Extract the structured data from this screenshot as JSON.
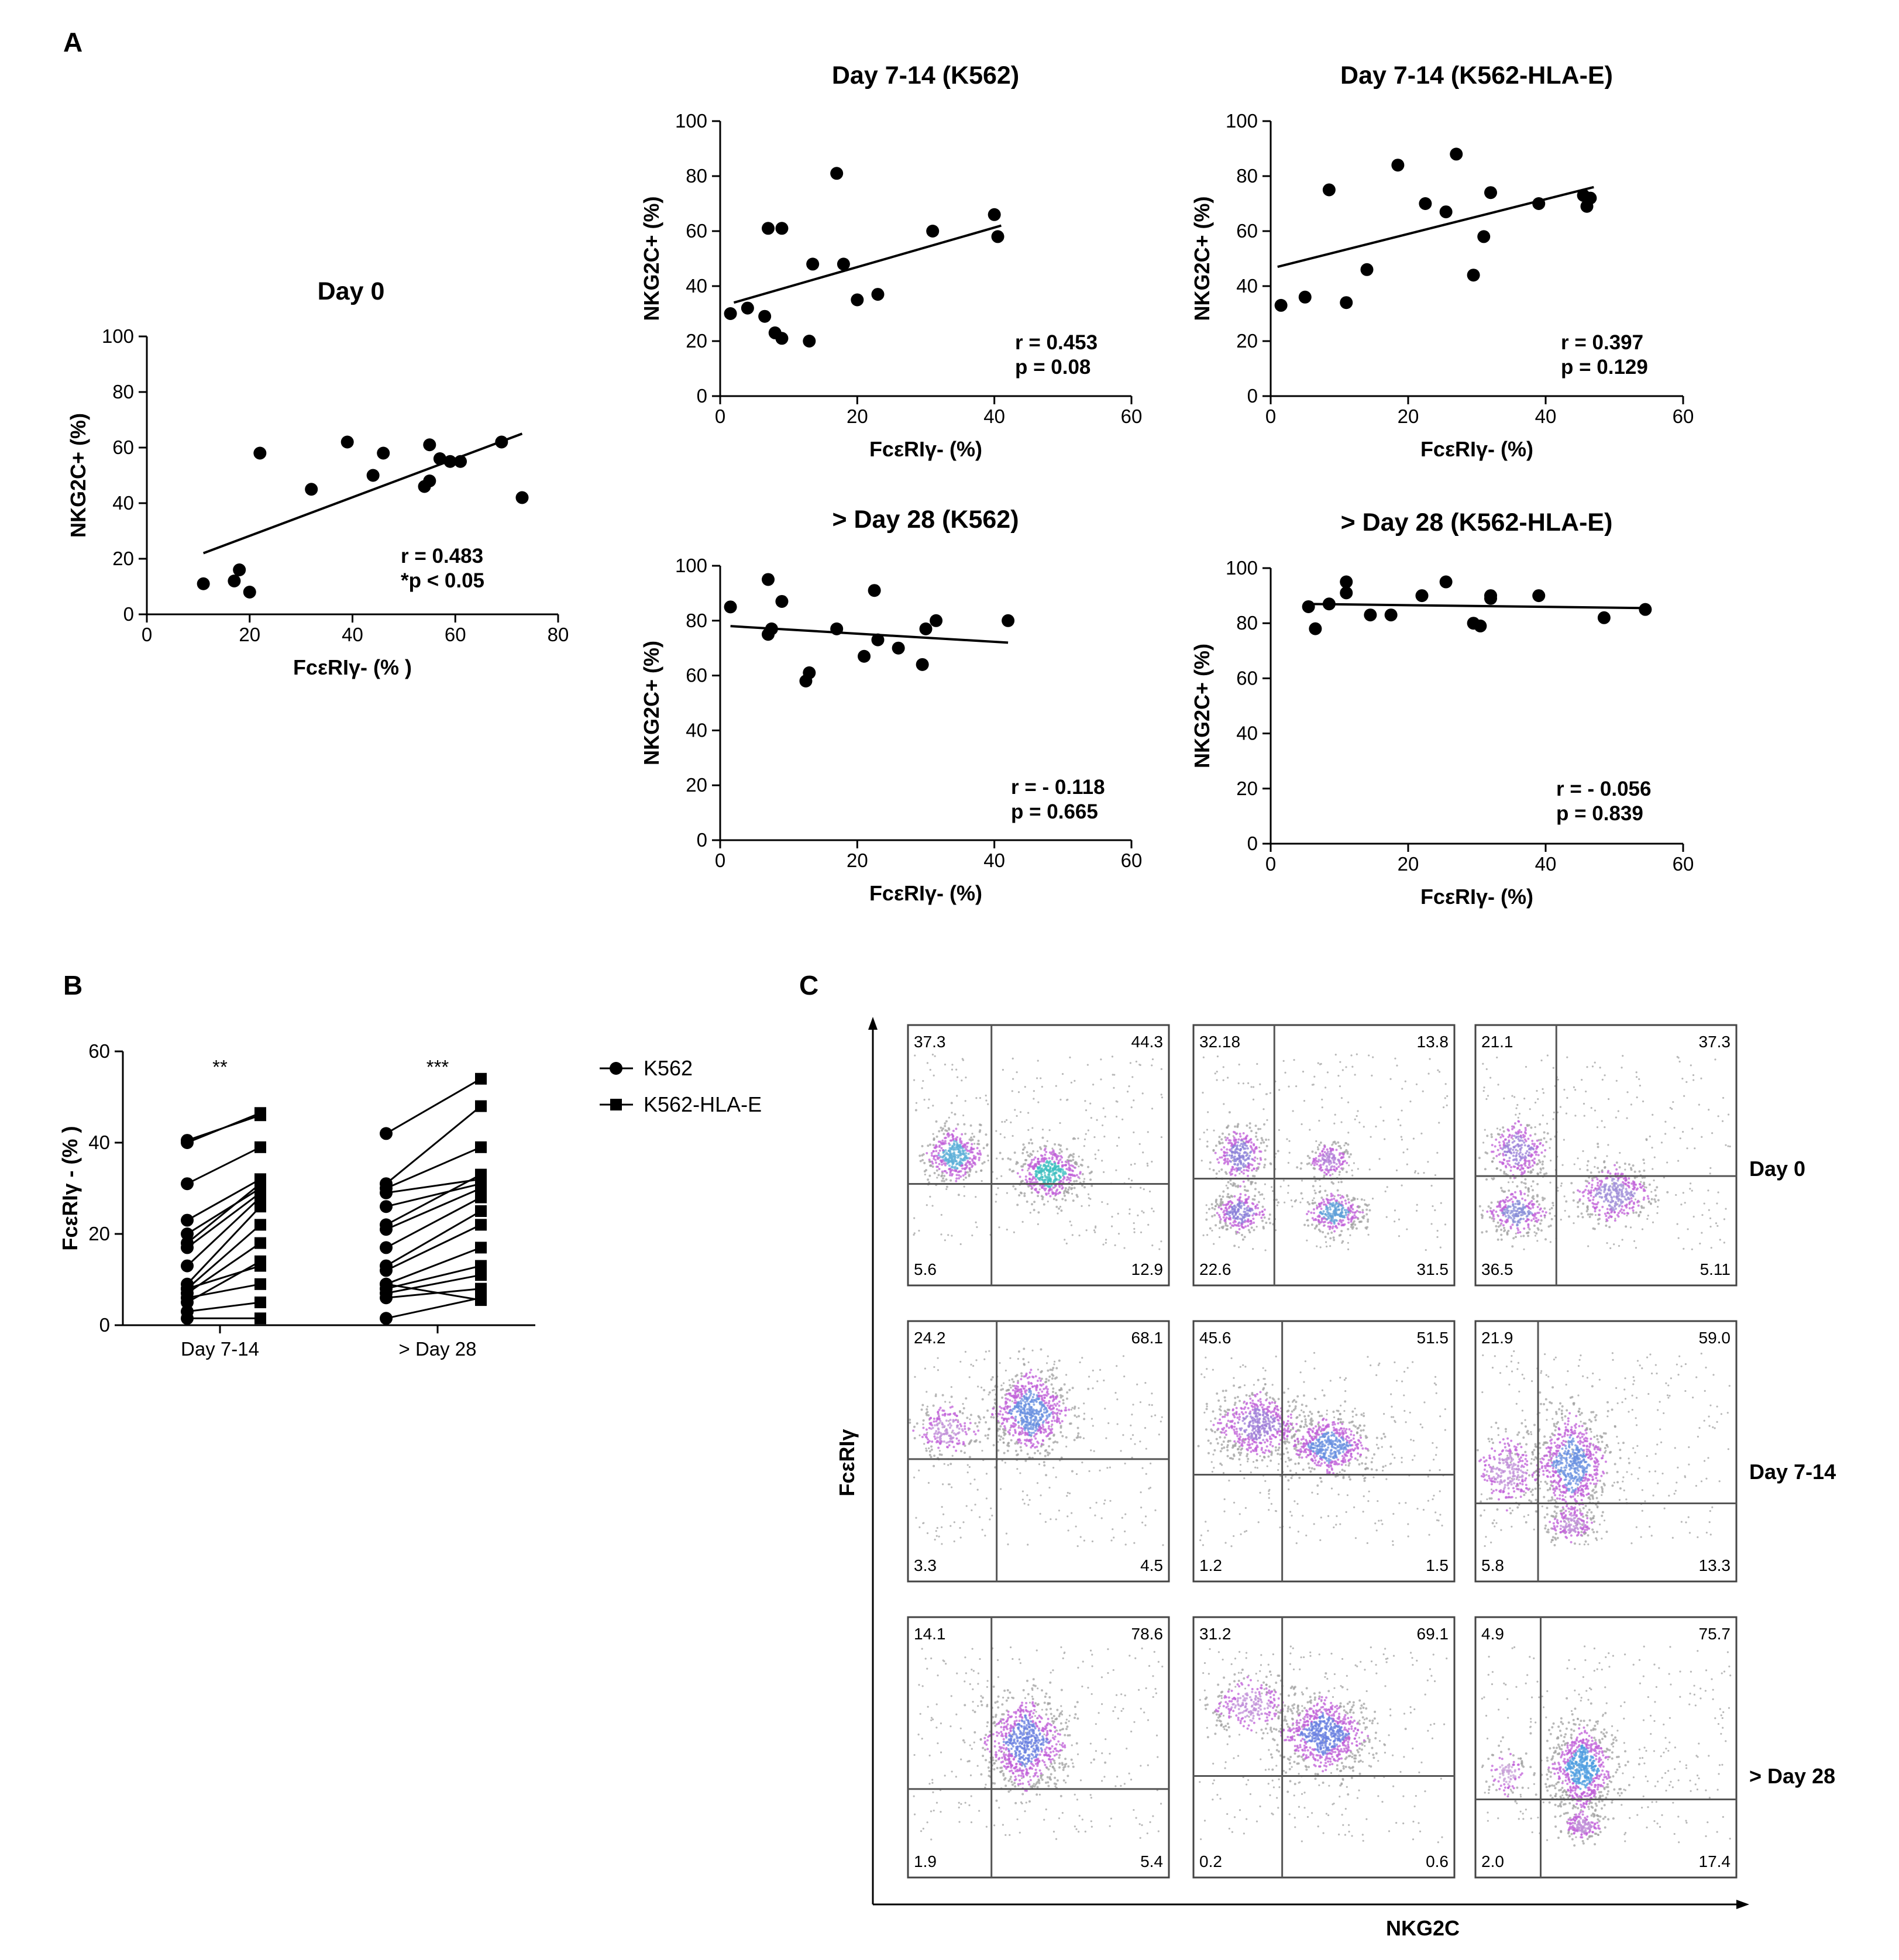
{
  "panels": {
    "a": "A",
    "b": "B",
    "c": "C"
  },
  "chart_data": [
    {
      "id": "day0",
      "type": "scatter",
      "title": "Day 0",
      "xlabel": "FcεRIγ- (% )",
      "ylabel": "NKG2C+ (%)",
      "xlim": [
        0,
        80
      ],
      "ylim": [
        0,
        100
      ],
      "xticks": [
        0,
        20,
        40,
        60,
        80
      ],
      "yticks": [
        0,
        20,
        40,
        60,
        80,
        100
      ],
      "stats": [
        "r = 0.483",
        "*p < 0.05"
      ],
      "fit": [
        [
          11,
          22
        ],
        [
          73,
          65
        ]
      ],
      "points": [
        [
          11,
          11
        ],
        [
          17,
          12
        ],
        [
          18,
          16
        ],
        [
          20,
          8
        ],
        [
          22,
          58
        ],
        [
          32,
          45
        ],
        [
          39,
          62
        ],
        [
          44,
          50
        ],
        [
          46,
          58
        ],
        [
          54,
          46
        ],
        [
          55,
          48
        ],
        [
          55,
          61
        ],
        [
          57,
          56
        ],
        [
          59,
          55
        ],
        [
          61,
          55
        ],
        [
          69,
          62
        ],
        [
          73,
          42
        ]
      ]
    },
    {
      "id": "d714_k562",
      "type": "scatter",
      "title": "Day 7-14 (K562)",
      "xlabel": "FcεRIγ- (%)",
      "ylabel": "NKG2C+ (%)",
      "xlim": [
        0,
        60
      ],
      "ylim": [
        0,
        100
      ],
      "xticks": [
        0,
        20,
        40,
        60
      ],
      "yticks": [
        0,
        20,
        40,
        60,
        80,
        100
      ],
      "stats": [
        "r = 0.453",
        "p = 0.08"
      ],
      "fit": [
        [
          2,
          34
        ],
        [
          41,
          62
        ]
      ],
      "points": [
        [
          1.5,
          30
        ],
        [
          4,
          32
        ],
        [
          6.5,
          29
        ],
        [
          7,
          61
        ],
        [
          8,
          23
        ],
        [
          9,
          61
        ],
        [
          9,
          21
        ],
        [
          13,
          20
        ],
        [
          13.5,
          48
        ],
        [
          17,
          81
        ],
        [
          18,
          48
        ],
        [
          20,
          35
        ],
        [
          23,
          37
        ],
        [
          31,
          60
        ],
        [
          40,
          66
        ],
        [
          40.5,
          58
        ]
      ]
    },
    {
      "id": "d714_hlae",
      "type": "scatter",
      "title": "Day 7-14 (K562-HLA-E)",
      "xlabel": "FcεRIγ- (%)",
      "ylabel": "NKG2C+ (%)",
      "xlim": [
        0,
        60
      ],
      "ylim": [
        0,
        100
      ],
      "xticks": [
        0,
        20,
        40,
        60
      ],
      "yticks": [
        0,
        20,
        40,
        60,
        80,
        100
      ],
      "stats": [
        "r = 0.397",
        "p = 0.129"
      ],
      "fit": [
        [
          1,
          47
        ],
        [
          47,
          76
        ]
      ],
      "points": [
        [
          1.5,
          33
        ],
        [
          5,
          36
        ],
        [
          8.5,
          75
        ],
        [
          11,
          34
        ],
        [
          14,
          46
        ],
        [
          18.5,
          84
        ],
        [
          22.5,
          70
        ],
        [
          25.5,
          67
        ],
        [
          27,
          88
        ],
        [
          29.5,
          44
        ],
        [
          31,
          58
        ],
        [
          32,
          74
        ],
        [
          39,
          70
        ],
        [
          45.5,
          73
        ],
        [
          46.5,
          72
        ],
        [
          46,
          69
        ]
      ]
    },
    {
      "id": "d28_k562",
      "type": "scatter",
      "title": "> Day 28 (K562)",
      "xlabel": "FcεRIγ- (%)",
      "ylabel": "NKG2C+ (%)",
      "xlim": [
        0,
        60
      ],
      "ylim": [
        0,
        100
      ],
      "xticks": [
        0,
        20,
        40,
        60
      ],
      "yticks": [
        0,
        20,
        40,
        60,
        80,
        100
      ],
      "stats": [
        "r = - 0.118",
        "p = 0.665"
      ],
      "fit": [
        [
          1.5,
          78
        ],
        [
          42,
          72
        ]
      ],
      "points": [
        [
          1.5,
          85
        ],
        [
          7,
          95
        ],
        [
          7,
          75
        ],
        [
          7.5,
          77
        ],
        [
          9,
          87
        ],
        [
          12.5,
          58
        ],
        [
          13,
          61
        ],
        [
          17,
          77
        ],
        [
          21,
          67
        ],
        [
          22.5,
          91
        ],
        [
          23,
          73
        ],
        [
          26,
          70
        ],
        [
          29.5,
          64
        ],
        [
          30,
          77
        ],
        [
          31.5,
          80
        ],
        [
          42,
          80
        ]
      ]
    },
    {
      "id": "d28_hlae",
      "type": "scatter",
      "title": "> Day 28 (K562-HLA-E)",
      "xlabel": "FcεRIγ- (%)",
      "ylabel": "NKG2C+ (%)",
      "xlim": [
        0,
        60
      ],
      "ylim": [
        0,
        100
      ],
      "xticks": [
        0,
        20,
        40,
        60
      ],
      "yticks": [
        0,
        20,
        40,
        60,
        80,
        100
      ],
      "stats": [
        "r = - 0.056",
        "p = 0.839"
      ],
      "fit": [
        [
          5,
          87
        ],
        [
          54.5,
          85.5
        ]
      ],
      "points": [
        [
          5.5,
          86
        ],
        [
          6.5,
          78
        ],
        [
          8.5,
          87
        ],
        [
          11,
          95
        ],
        [
          11,
          91
        ],
        [
          14.5,
          83
        ],
        [
          17.5,
          83
        ],
        [
          22,
          90
        ],
        [
          25.5,
          95
        ],
        [
          29.5,
          80
        ],
        [
          30.5,
          79
        ],
        [
          32,
          89
        ],
        [
          32,
          90
        ],
        [
          39,
          90
        ],
        [
          48.5,
          82
        ],
        [
          54.5,
          85
        ]
      ]
    },
    {
      "id": "paired",
      "type": "line",
      "xlabel": "",
      "ylabel": "FcεRIγ - (% )",
      "categories": [
        "Day 7-14",
        "> Day 28"
      ],
      "ylim": [
        0,
        60
      ],
      "yticks": [
        0,
        20,
        40,
        60
      ],
      "significance": [
        "**",
        "***"
      ],
      "legend": [
        {
          "name": "K562",
          "marker": "circle"
        },
        {
          "name": "K562-HLA-E",
          "marker": "square"
        }
      ],
      "groups": [
        {
          "category": "Day 7-14",
          "pairs": [
            [
              40.5,
              46
            ],
            [
              40,
              46.5
            ],
            [
              31,
              39
            ],
            [
              23,
              32
            ],
            [
              20,
              30
            ],
            [
              18,
              31
            ],
            [
              17,
              29
            ],
            [
              13,
              28
            ],
            [
              9,
              26
            ],
            [
              8,
              22
            ],
            [
              7,
              18
            ],
            [
              8,
              13
            ],
            [
              5,
              14
            ],
            [
              6,
              9
            ],
            [
              3,
              5
            ],
            [
              1.5,
              1.5
            ]
          ]
        },
        {
          "category": "> Day 28",
          "pairs": [
            [
              42,
              54
            ],
            [
              31,
              48
            ],
            [
              30,
              39
            ],
            [
              29,
              32
            ],
            [
              26,
              31
            ],
            [
              22,
              33
            ],
            [
              21,
              30
            ],
            [
              17,
              28
            ],
            [
              13,
              25
            ],
            [
              12,
              22
            ],
            [
              9,
              17
            ],
            [
              8,
              13
            ],
            [
              7,
              11
            ],
            [
              6,
              8
            ],
            [
              9,
              5.5
            ],
            [
              1.5,
              6
            ]
          ]
        }
      ]
    },
    {
      "id": "flow",
      "type": "heatmap",
      "xlabel": "NKG2C",
      "ylabel": "FcεRIγ",
      "rows": [
        "Day 0",
        "Day 7-14",
        "> Day 28"
      ],
      "plots": [
        {
          "row": 0,
          "col": 0,
          "q": [
            "37.3",
            "44.3",
            "5.6",
            "12.9"
          ],
          "vx": 0.32,
          "hy": 0.61,
          "clusters": [
            [
              0.18,
              0.5,
              0.1,
              0.09,
              0.5,
              "#5fb0d8"
            ],
            [
              0.54,
              0.57,
              0.11,
              0.09,
              0.55,
              "#3fbfc0"
            ]
          ]
        },
        {
          "row": 0,
          "col": 1,
          "q": [
            "32.18",
            "13.8",
            "22.6",
            "31.5"
          ],
          "vx": 0.31,
          "hy": 0.59,
          "clusters": [
            [
              0.18,
              0.5,
              0.09,
              0.1,
              0.33,
              "#8a7fd8"
            ],
            [
              0.18,
              0.72,
              0.09,
              0.07,
              0.32,
              "#8a7fd8"
            ],
            [
              0.52,
              0.52,
              0.07,
              0.06,
              0.2,
              "#b37fd8"
            ],
            [
              0.54,
              0.72,
              0.1,
              0.07,
              0.35,
              "#5fa0d8"
            ]
          ]
        },
        {
          "row": 0,
          "col": 2,
          "q": [
            "21.1",
            "37.3",
            "36.5",
            "5.11"
          ],
          "vx": 0.31,
          "hy": 0.58,
          "clusters": [
            [
              0.16,
              0.48,
              0.1,
              0.1,
              0.32,
              "#9a7fd8"
            ],
            [
              0.16,
              0.72,
              0.1,
              0.08,
              0.35,
              "#8a8fd8"
            ],
            [
              0.53,
              0.65,
              0.13,
              0.1,
              0.45,
              "#a08fd8"
            ]
          ]
        },
        {
          "row": 1,
          "col": 0,
          "q": [
            "24.2",
            "68.1",
            "3.3",
            "4.5"
          ],
          "vx": 0.34,
          "hy": 0.53,
          "clusters": [
            [
              0.15,
              0.42,
              0.11,
              0.09,
              0.25,
              "#c08fd8"
            ],
            [
              0.47,
              0.35,
              0.13,
              0.14,
              0.85,
              "#6a90e0"
            ]
          ]
        },
        {
          "row": 1,
          "col": 1,
          "q": [
            "45.6",
            "51.5",
            "1.2",
            "1.5"
          ],
          "vx": 0.34,
          "hy": 0.59,
          "clusters": [
            [
              0.25,
              0.4,
              0.15,
              0.11,
              0.65,
              "#a07fd8"
            ],
            [
              0.52,
              0.48,
              0.14,
              0.1,
              0.65,
              "#6a90e0"
            ]
          ]
        },
        {
          "row": 1,
          "col": 2,
          "q": [
            "21.9",
            "59.0",
            "5.8",
            "13.3"
          ],
          "vx": 0.24,
          "hy": 0.7,
          "clusters": [
            [
              0.12,
              0.58,
              0.12,
              0.13,
              0.35,
              "#c08fd8"
            ],
            [
              0.37,
              0.55,
              0.12,
              0.18,
              0.85,
              "#6a90e0"
            ],
            [
              0.37,
              0.78,
              0.08,
              0.06,
              0.2,
              "#c08fd8"
            ]
          ]
        },
        {
          "row": 2,
          "col": 0,
          "q": [
            "14.1",
            "78.6",
            "1.9",
            "5.4"
          ],
          "vx": 0.32,
          "hy": 0.66,
          "clusters": [
            [
              0.45,
              0.48,
              0.14,
              0.16,
              0.9,
              "#6a80e0"
            ]
          ]
        },
        {
          "row": 2,
          "col": 1,
          "q": [
            "31.2",
            "69.1",
            "0.2",
            "0.6"
          ],
          "vx": 0.34,
          "hy": 0.61,
          "clusters": [
            [
              0.22,
              0.34,
              0.14,
              0.1,
              0.3,
              "#c08fd8"
            ],
            [
              0.5,
              0.45,
              0.15,
              0.13,
              0.9,
              "#6a80e0"
            ]
          ]
        },
        {
          "row": 2,
          "col": 2,
          "q": [
            "4.9",
            "75.7",
            "2.0",
            "17.4"
          ],
          "vx": 0.25,
          "hy": 0.7,
          "clusters": [
            [
              0.12,
              0.6,
              0.07,
              0.08,
              0.12,
              "#c8a0d8"
            ],
            [
              0.41,
              0.58,
              0.11,
              0.14,
              0.85,
              "#4f9ee0"
            ],
            [
              0.41,
              0.8,
              0.07,
              0.05,
              0.2,
              "#c08fd8"
            ]
          ]
        }
      ]
    }
  ]
}
